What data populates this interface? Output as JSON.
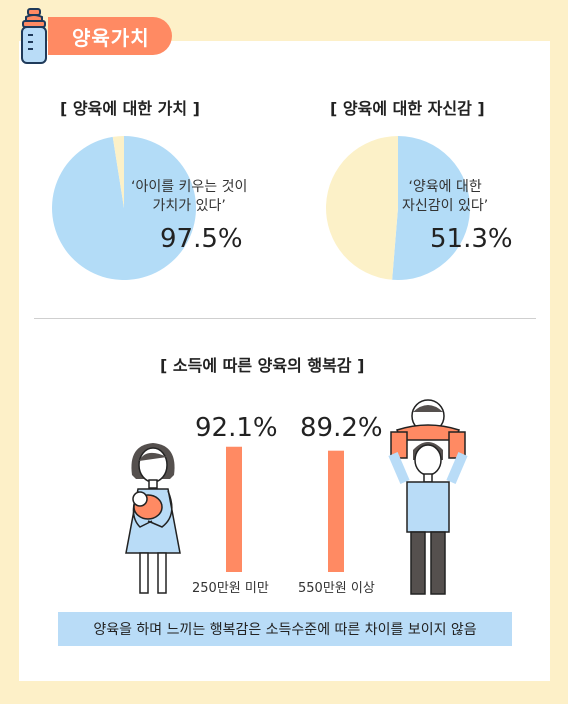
{
  "header": {
    "title": "양육가치"
  },
  "colors": {
    "accent": "#ff8a63",
    "pie_main": "#b3dcf7",
    "pie_rest": "#fcf1c8",
    "bar": "#ff8a63",
    "note_bg": "#b9dcf7",
    "page_bg": "#fdf0c8"
  },
  "icons": {
    "header": "baby-bottle-icon"
  },
  "chart_data": [
    {
      "type": "pie",
      "title": "[ 양육에 대한 가치 ]",
      "annotation": "‘아이를 키우는 것이\n가치가 있다’",
      "series": [
        {
          "values": [
            97.5,
            2.5
          ]
        }
      ],
      "value_label": "97.5%"
    },
    {
      "type": "pie",
      "title": "[ 양육에 대한 자신감 ]",
      "annotation": "‘양육에 대한\n자신감이 있다’",
      "series": [
        {
          "values": [
            51.3,
            48.7
          ]
        }
      ],
      "value_label": "51.3%"
    },
    {
      "type": "bar",
      "title": "[ 소득에 따른 양육의 행복감 ]",
      "categories": [
        "250만원 미만",
        "550만원 이상"
      ],
      "values": [
        92.1,
        89.2
      ],
      "value_labels": [
        "92.1%",
        "89.2%"
      ],
      "ylim": [
        0,
        100
      ]
    }
  ],
  "footnote": "양육을 하며 느끼는 행복감은 소득수준에 따른 차이를 보이지 않음"
}
